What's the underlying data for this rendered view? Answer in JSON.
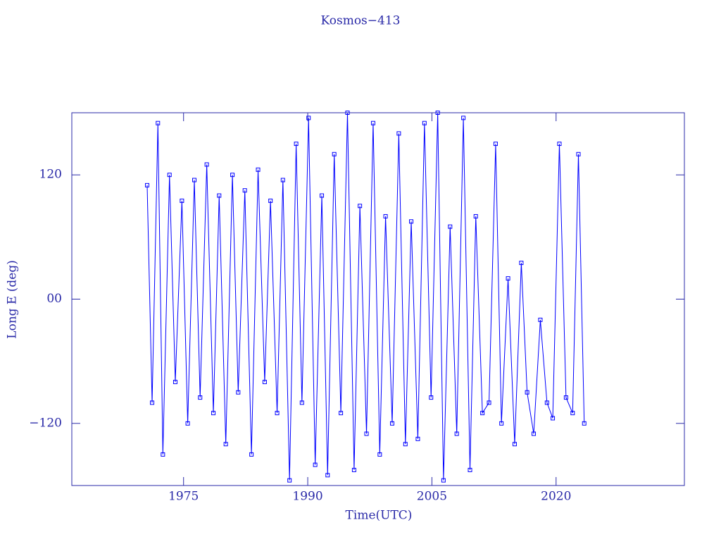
{
  "chart_data": {
    "type": "line",
    "title": "Kosmos−413",
    "x_label": "Time(UTC)",
    "y_label": "Long E (deg)",
    "xlim": [
      1961.5,
      2035.5
    ],
    "ylim": [
      -180,
      180
    ],
    "xticks": [
      1975,
      1990,
      2005,
      2020
    ],
    "yticks": [
      {
        "value": -120,
        "label": "−120"
      },
      {
        "value": 0,
        "label": "00"
      },
      120
    ],
    "series": [
      {
        "color": "#0000ff",
        "x": [
          1970.6,
          1971.2,
          1971.9,
          1972.5,
          1973.3,
          1974.0,
          1974.8,
          1975.5,
          1976.3,
          1977.0,
          1977.8,
          1978.6,
          1979.3,
          1980.1,
          1980.9,
          1981.6,
          1982.4,
          1983.2,
          1984.0,
          1984.8,
          1985.5,
          1986.3,
          1987.0,
          1987.8,
          1988.6,
          1989.3,
          1990.1,
          1990.9,
          1991.7,
          1992.4,
          1993.2,
          1994.0,
          1994.8,
          1995.6,
          1996.3,
          1997.1,
          1997.9,
          1998.7,
          1999.4,
          2000.2,
          2001.0,
          2001.8,
          2002.5,
          2003.3,
          2004.1,
          2004.9,
          2005.7,
          2006.4,
          2007.2,
          2008.0,
          2008.8,
          2009.6,
          2010.3,
          2011.1,
          2011.9,
          2012.7,
          2013.4,
          2014.2,
          2015.0,
          2015.8,
          2016.5,
          2017.3,
          2018.1,
          2018.9,
          2019.6,
          2020.4,
          2021.2,
          2022.0,
          2022.7,
          2023.4
        ],
        "values": [
          110,
          -100,
          170,
          -150,
          120,
          -80,
          95,
          -120,
          115,
          -95,
          130,
          -110,
          100,
          -140,
          120,
          -90,
          105,
          -150,
          125,
          -80,
          95,
          -110,
          115,
          -175,
          150,
          -100,
          175,
          -160,
          100,
          -170,
          140,
          -110,
          180,
          -165,
          90,
          -130,
          170,
          -150,
          80,
          -120,
          160,
          -140,
          75,
          -135,
          170,
          -95,
          180,
          -175,
          70,
          -130,
          175,
          -165,
          80,
          -110,
          -100,
          150,
          -120,
          20,
          -140,
          35,
          -90,
          -130,
          -20,
          -100,
          -115,
          150,
          -95,
          -110,
          140,
          -120
        ]
      }
    ]
  }
}
